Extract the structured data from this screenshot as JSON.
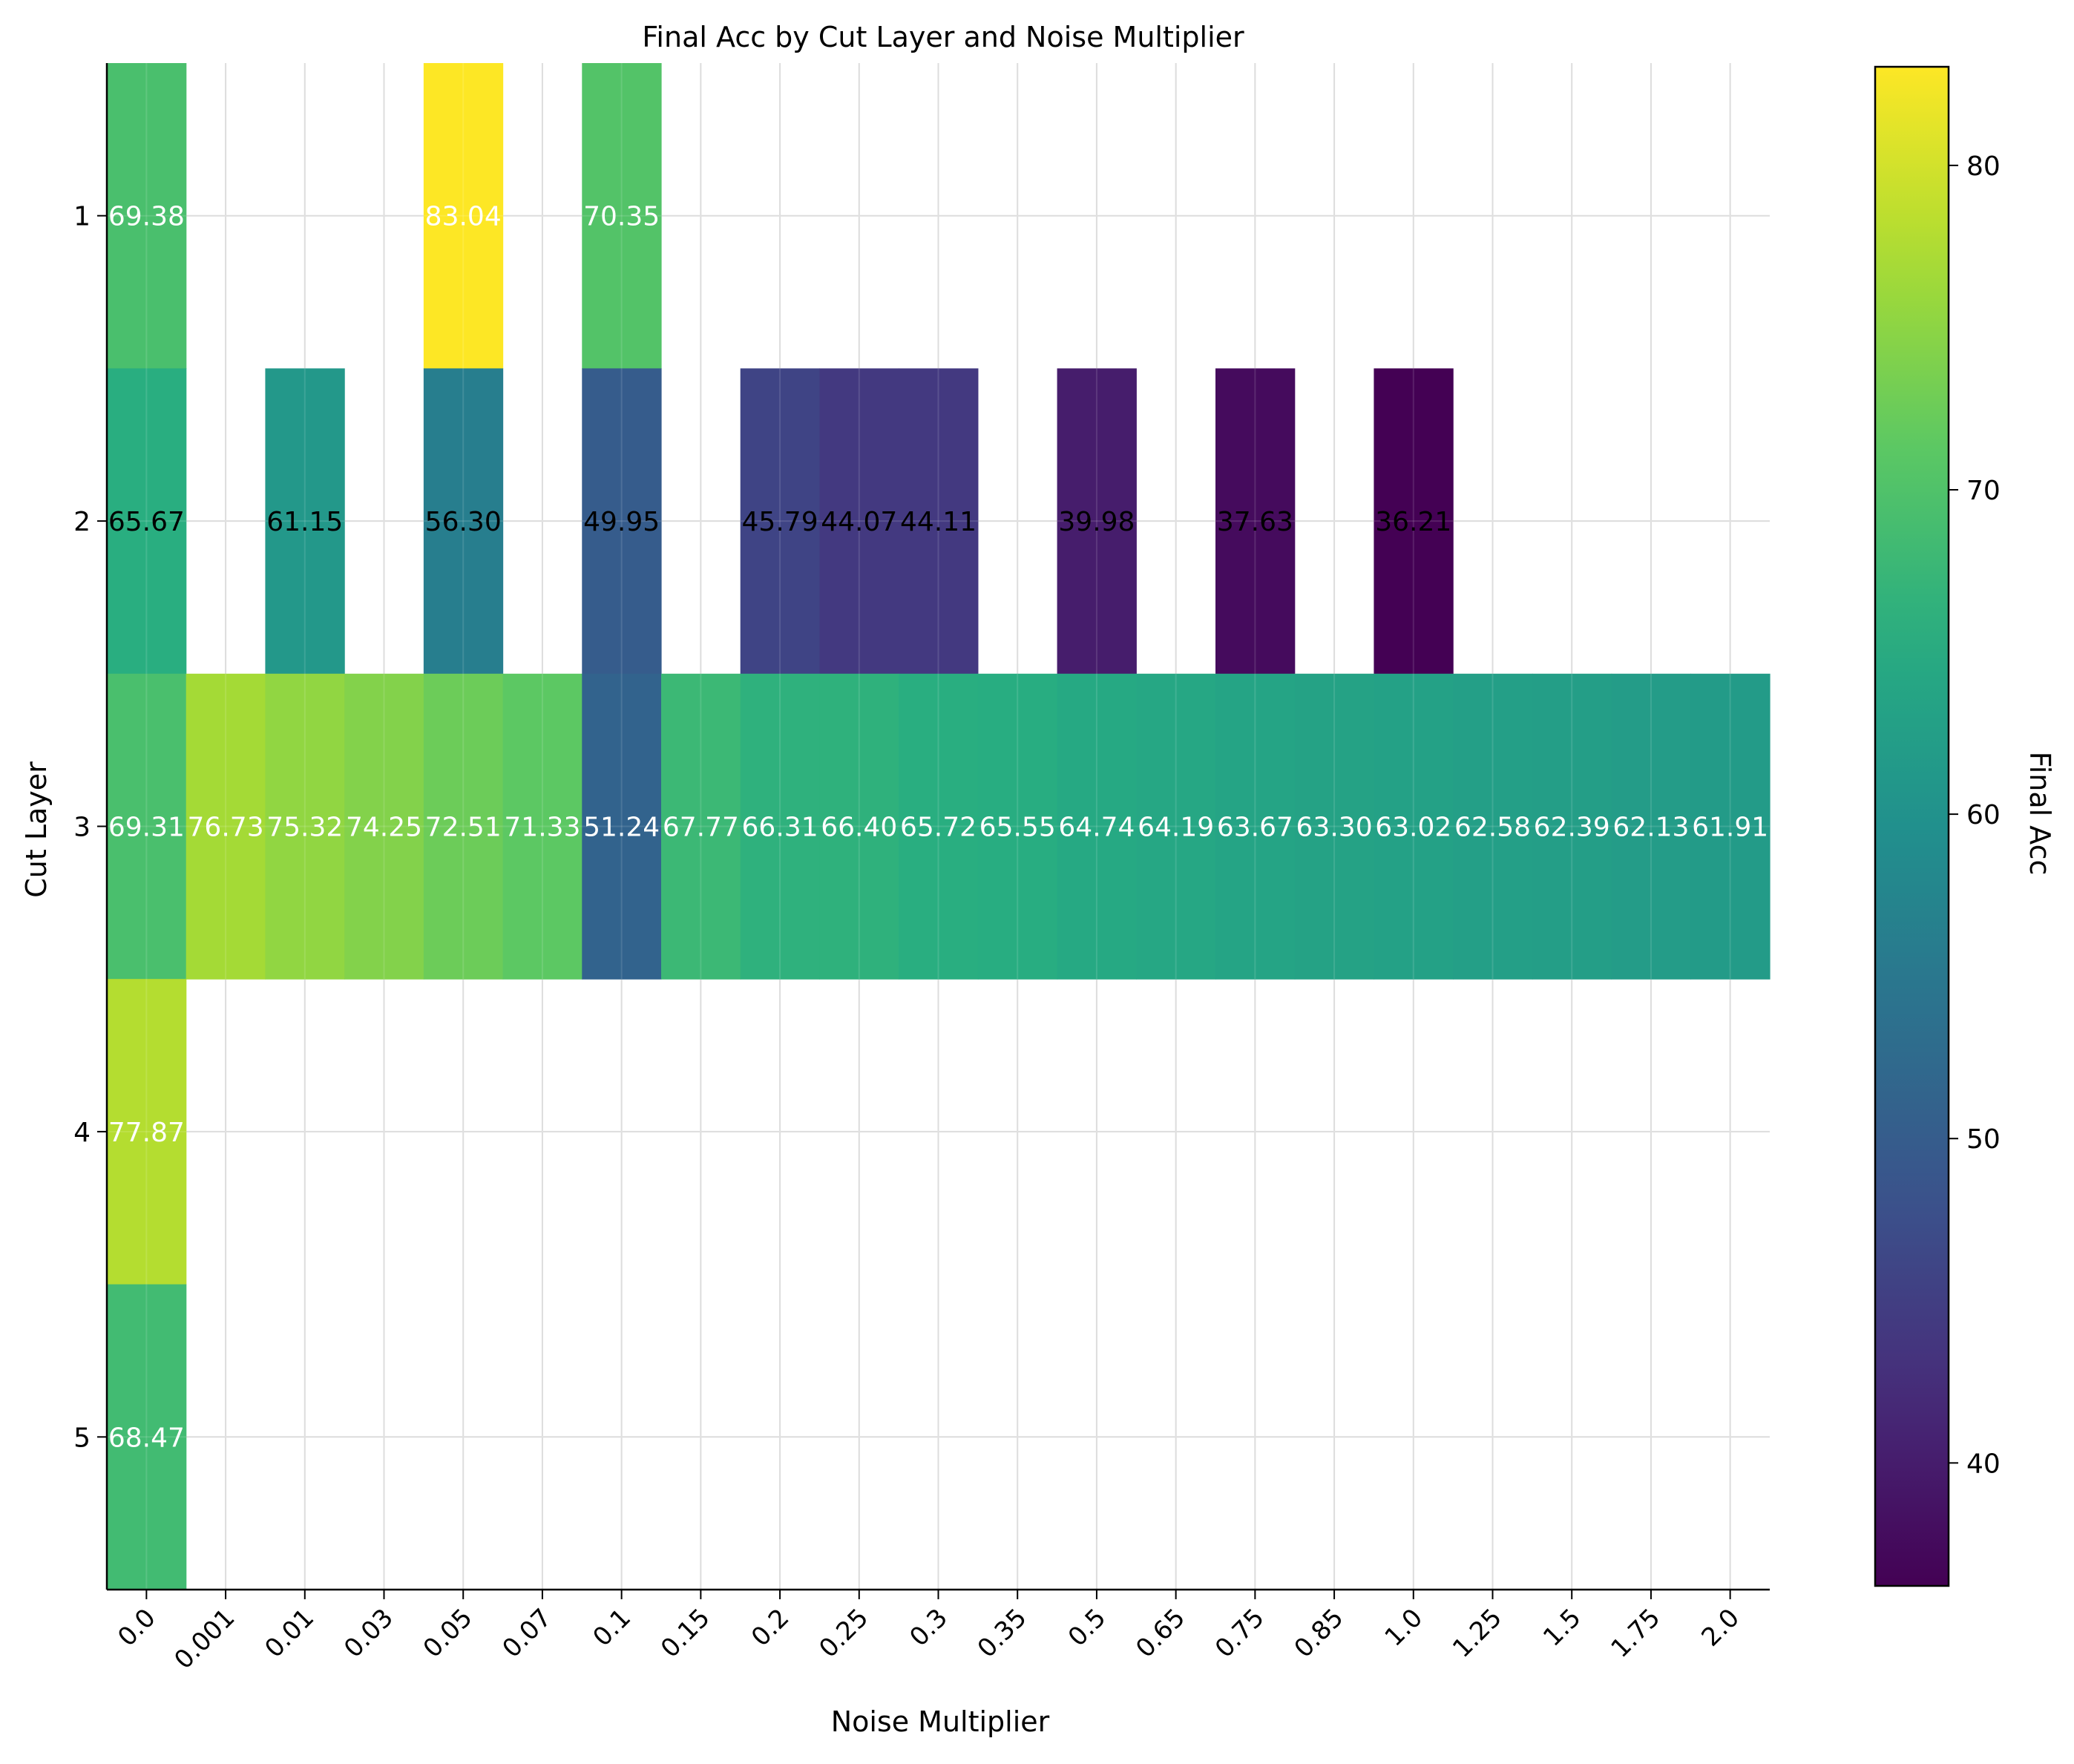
{
  "chart_data": {
    "type": "heatmap",
    "title": "Final Acc by Cut Layer and Noise Multiplier",
    "xlabel": "Noise Multiplier",
    "ylabel": "Cut Layer",
    "colorbar_label": "Final Acc",
    "colormap": "viridis",
    "color_range": [
      36.21,
      83.04
    ],
    "colorbar_ticks": [
      "40",
      "50",
      "60",
      "70",
      "80"
    ],
    "colorbar_tick_values": [
      40,
      50,
      60,
      70,
      80
    ],
    "grid": true,
    "x_categories": [
      "0.0",
      "0.001",
      "0.01",
      "0.03",
      "0.05",
      "0.07",
      "0.1",
      "0.15",
      "0.2",
      "0.25",
      "0.3",
      "0.35",
      "0.5",
      "0.65",
      "0.75",
      "0.85",
      "1.0",
      "1.25",
      "1.5",
      "1.75",
      "2.0"
    ],
    "y_categories": [
      "1",
      "2",
      "3",
      "4",
      "5"
    ],
    "cells": [
      {
        "y": "1",
        "x": "0.0",
        "value": 69.38,
        "label": "69.38"
      },
      {
        "y": "1",
        "x": "0.05",
        "value": 83.04,
        "label": "83.04"
      },
      {
        "y": "1",
        "x": "0.1",
        "value": 70.35,
        "label": "70.35"
      },
      {
        "y": "2",
        "x": "0.0",
        "value": 65.67,
        "label": "65.67"
      },
      {
        "y": "2",
        "x": "0.01",
        "value": 61.15,
        "label": "61.15"
      },
      {
        "y": "2",
        "x": "0.05",
        "value": 56.3,
        "label": "56.30"
      },
      {
        "y": "2",
        "x": "0.1",
        "value": 49.95,
        "label": "49.95"
      },
      {
        "y": "2",
        "x": "0.2",
        "value": 45.79,
        "label": "45.79"
      },
      {
        "y": "2",
        "x": "0.25",
        "value": 44.07,
        "label": "44.07"
      },
      {
        "y": "2",
        "x": "0.3",
        "value": 44.11,
        "label": "44.11"
      },
      {
        "y": "2",
        "x": "0.5",
        "value": 39.98,
        "label": "39.98"
      },
      {
        "y": "2",
        "x": "0.75",
        "value": 37.63,
        "label": "37.63"
      },
      {
        "y": "2",
        "x": "1.0",
        "value": 36.21,
        "label": "36.21"
      },
      {
        "y": "3",
        "x": "0.0",
        "value": 69.31,
        "label": "69.31"
      },
      {
        "y": "3",
        "x": "0.001",
        "value": 76.73,
        "label": "76.73"
      },
      {
        "y": "3",
        "x": "0.01",
        "value": 75.32,
        "label": "75.32"
      },
      {
        "y": "3",
        "x": "0.03",
        "value": 74.25,
        "label": "74.25"
      },
      {
        "y": "3",
        "x": "0.05",
        "value": 72.51,
        "label": "72.51"
      },
      {
        "y": "3",
        "x": "0.07",
        "value": 71.33,
        "label": "71.33"
      },
      {
        "y": "3",
        "x": "0.1",
        "value": 51.24,
        "label": "51.24"
      },
      {
        "y": "3",
        "x": "0.15",
        "value": 67.77,
        "label": "67.77"
      },
      {
        "y": "3",
        "x": "0.2",
        "value": 66.31,
        "label": "66.31"
      },
      {
        "y": "3",
        "x": "0.25",
        "value": 66.4,
        "label": "66.40"
      },
      {
        "y": "3",
        "x": "0.3",
        "value": 65.72,
        "label": "65.72"
      },
      {
        "y": "3",
        "x": "0.35",
        "value": 65.55,
        "label": "65.55"
      },
      {
        "y": "3",
        "x": "0.5",
        "value": 64.74,
        "label": "64.74"
      },
      {
        "y": "3",
        "x": "0.65",
        "value": 64.19,
        "label": "64.19"
      },
      {
        "y": "3",
        "x": "0.75",
        "value": 63.67,
        "label": "63.67"
      },
      {
        "y": "3",
        "x": "0.85",
        "value": 63.3,
        "label": "63.30"
      },
      {
        "y": "3",
        "x": "1.0",
        "value": 63.02,
        "label": "63.02"
      },
      {
        "y": "3",
        "x": "1.25",
        "value": 62.58,
        "label": "62.58"
      },
      {
        "y": "3",
        "x": "1.5",
        "value": 62.39,
        "label": "62.39"
      },
      {
        "y": "3",
        "x": "1.75",
        "value": 62.13,
        "label": "62.13"
      },
      {
        "y": "3",
        "x": "2.0",
        "value": 61.91,
        "label": "61.91"
      },
      {
        "y": "4",
        "x": "0.0",
        "value": 77.87,
        "label": "77.87"
      },
      {
        "y": "5",
        "x": "0.0",
        "value": 68.47,
        "label": "68.47"
      }
    ]
  }
}
